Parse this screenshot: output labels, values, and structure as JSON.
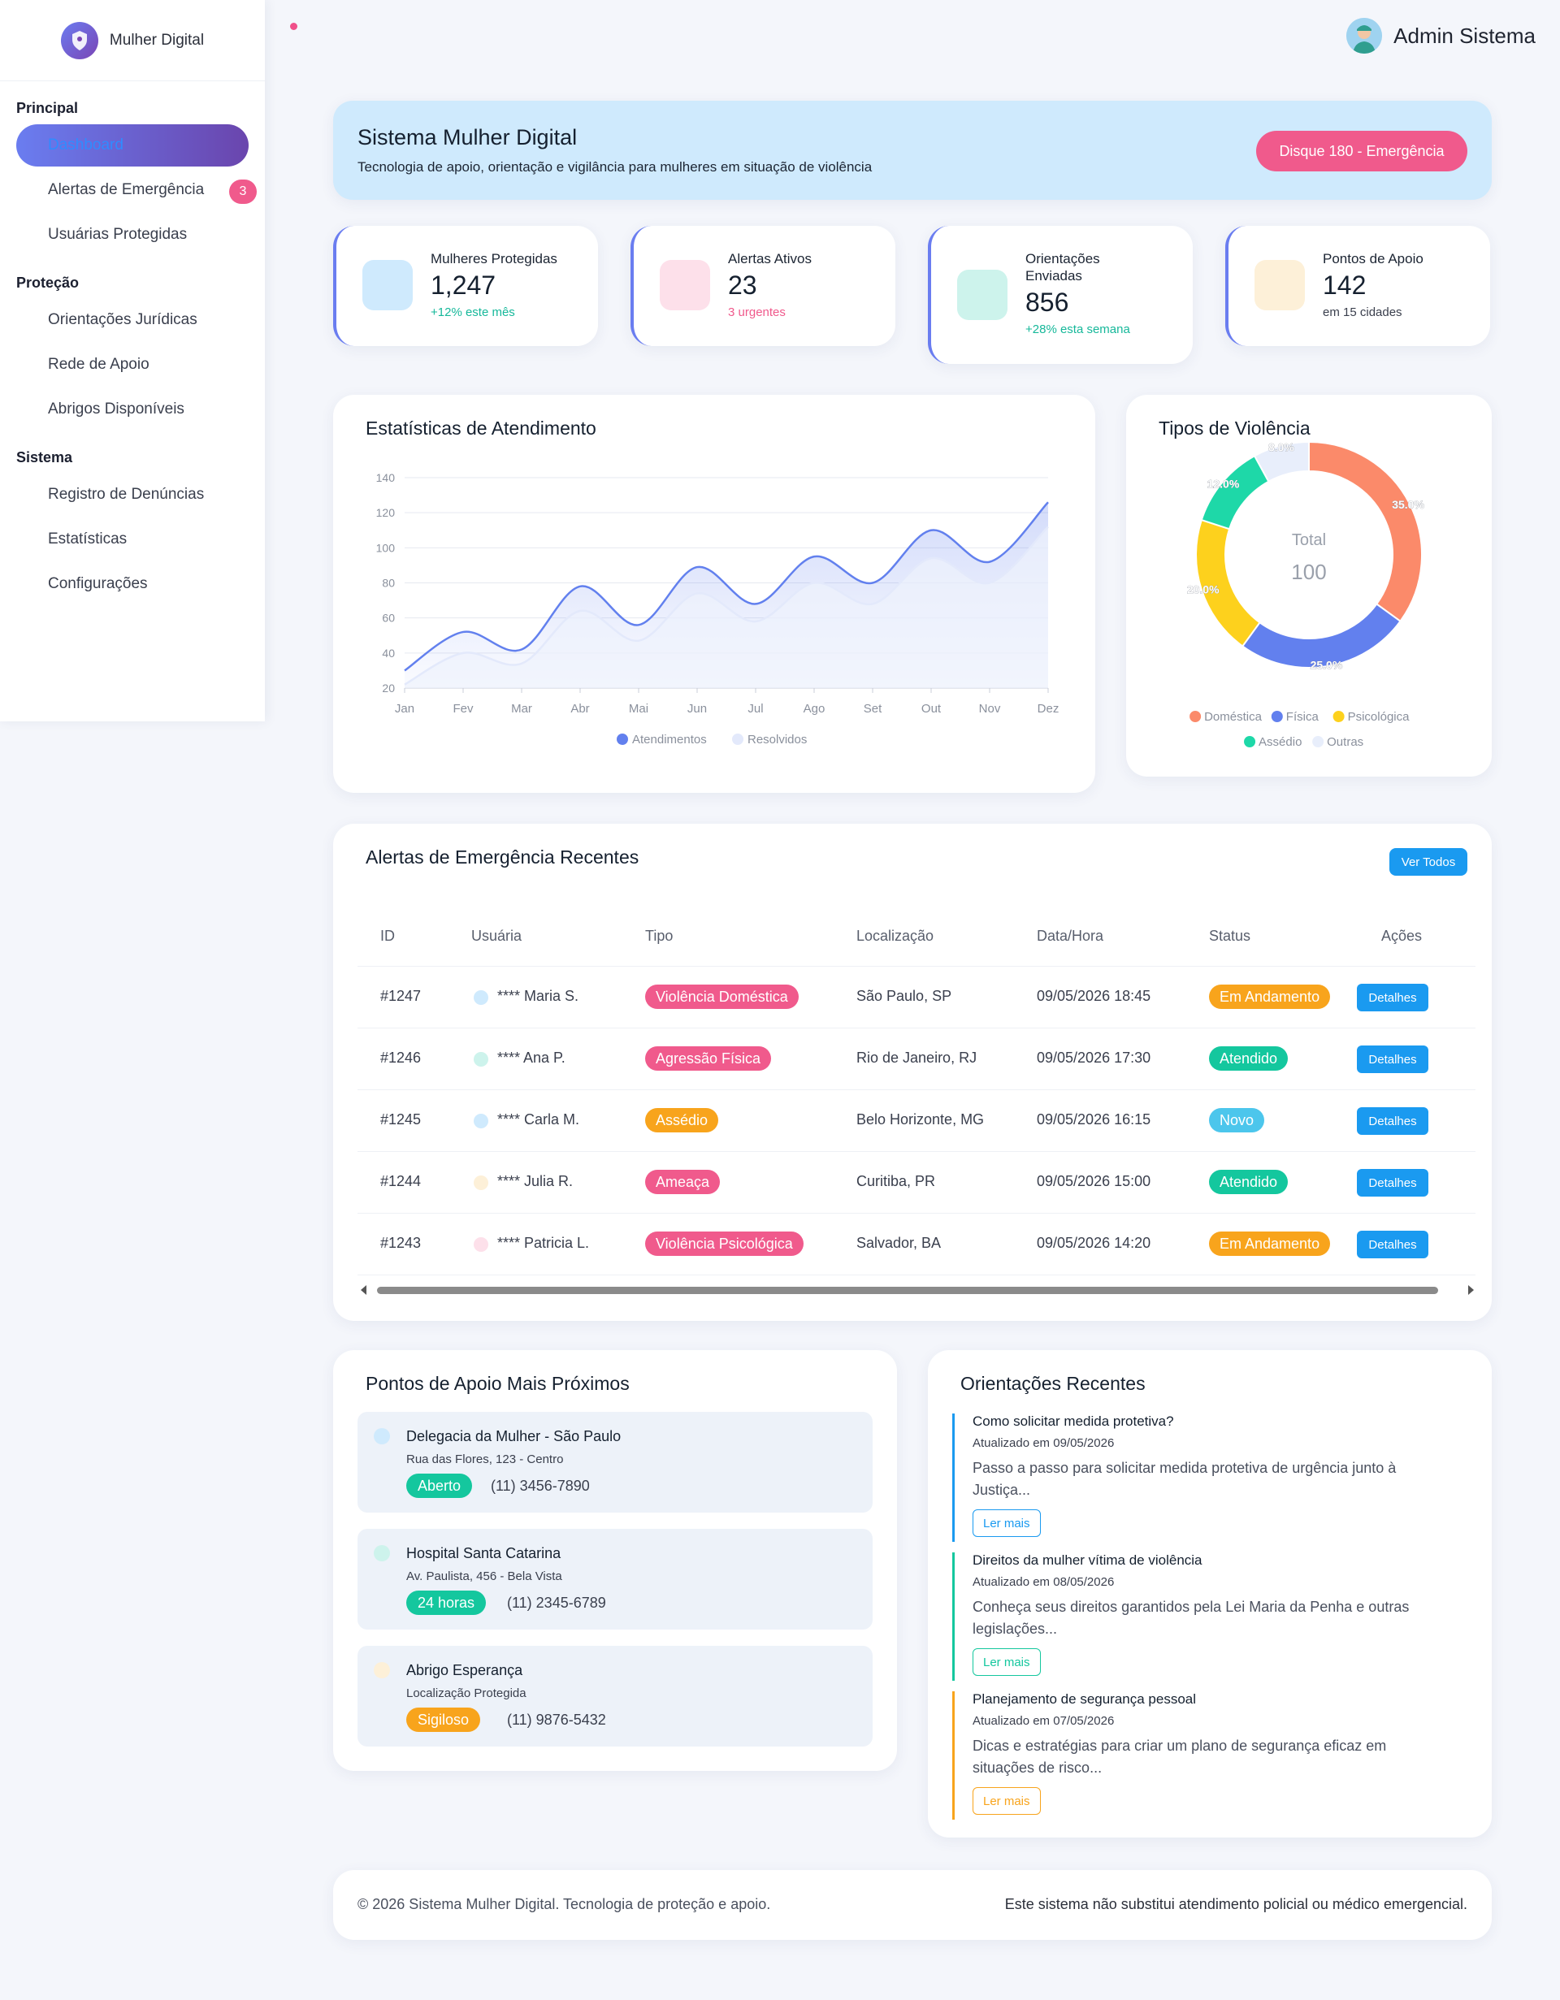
{
  "brand": {
    "name": "Mulher Digital"
  },
  "sidebar": {
    "sections": [
      {
        "title": "Principal",
        "items": [
          {
            "label": "Dashboard"
          },
          {
            "label": "Alertas de Emergência",
            "badge": "3"
          },
          {
            "label": "Usuárias Protegidas"
          }
        ]
      },
      {
        "title": "Proteção",
        "items": [
          {
            "label": "Orientações Jurídicas"
          },
          {
            "label": "Rede de Apoio"
          },
          {
            "label": "Abrigos Disponíveis"
          }
        ]
      },
      {
        "title": "Sistema",
        "items": [
          {
            "label": "Registro de Denúncias"
          },
          {
            "label": "Estatísticas"
          },
          {
            "label": "Configurações"
          }
        ]
      }
    ]
  },
  "header": {
    "user_name": "Admin Sistema"
  },
  "hero": {
    "title": "Sistema Mulher Digital",
    "subtitle": "Tecnologia de apoio, orientação e vigilância para mulheres em situação de violência",
    "emergency_button": "Disque 180 - Emergência"
  },
  "stats": [
    {
      "label": "Mulheres Protegidas",
      "value": "1,247",
      "note": "+12% este mês",
      "note_color": "#16b89a",
      "icon_color": "#cfeafd"
    },
    {
      "label": "Alertas Ativos",
      "value": "23",
      "note": "3 urgentes",
      "note_color": "#f05a8c",
      "icon_color": "#fde0ea"
    },
    {
      "label": "Orientações Enviadas",
      "value": "856",
      "note": "+28% esta semana",
      "note_color": "#16b89a",
      "icon_color": "#cdf3ec"
    },
    {
      "label": "Pontos de Apoio",
      "value": "142",
      "note": "em 15 cidades",
      "note_color": "#3a3f4d",
      "icon_color": "#fdf0d8"
    }
  ],
  "chart_data": [
    {
      "type": "area",
      "title": "Estatísticas de Atendimento",
      "categories": [
        "Jan",
        "Fev",
        "Mar",
        "Abr",
        "Mai",
        "Jun",
        "Jul",
        "Ago",
        "Set",
        "Out",
        "Nov",
        "Dez"
      ],
      "ylim": [
        20,
        140
      ],
      "yticks": [
        20,
        40,
        60,
        80,
        100,
        120,
        140
      ],
      "grid": true,
      "legend": "bottom",
      "series": [
        {
          "name": "Atendimentos",
          "values": [
            30,
            52,
            42,
            78,
            56,
            89,
            68,
            95,
            80,
            110,
            92,
            126
          ],
          "color": "#6280ee"
        },
        {
          "name": "Resolvidos",
          "values": [
            22,
            40,
            34,
            64,
            47,
            74,
            58,
            80,
            68,
            94,
            80,
            112
          ],
          "color": "#e3e9fb"
        }
      ]
    },
    {
      "type": "pie",
      "title": "Tipos de Violência",
      "center_label": "Total",
      "center_value": "100",
      "legend": "bottom",
      "slices": [
        {
          "name": "Doméstica",
          "value": 35.0,
          "label": "35.0%",
          "color": "#fb8a6a"
        },
        {
          "name": "Física",
          "value": 25.0,
          "label": "25.0%",
          "color": "#6280ee"
        },
        {
          "name": "Psicológica",
          "value": 20.0,
          "label": "20.0%",
          "color": "#fdd11d"
        },
        {
          "name": "Assédio",
          "value": 12.0,
          "label": "12.0%",
          "color": "#1ed8a8"
        },
        {
          "name": "Outras",
          "value": 8.0,
          "label": "8.0%",
          "color": "#e8eefb"
        }
      ]
    }
  ],
  "alerts": {
    "title": "Alertas de Emergência Recentes",
    "view_all": "Ver Todos",
    "columns": [
      "ID",
      "Usuária",
      "Tipo",
      "Localização",
      "Data/Hora",
      "Status",
      "Ações"
    ],
    "rows": [
      {
        "id": "#1247",
        "user": "**** Maria S.",
        "dot": "#cfeafd",
        "type": "Violência Doméstica",
        "type_color": "#f05a8c",
        "location": "São Paulo, SP",
        "datetime": "09/05/2026 18:45",
        "status": "Em Andamento",
        "status_color": "#f8a41c",
        "action": "Detalhes"
      },
      {
        "id": "#1246",
        "user": "**** Ana P.",
        "dot": "#cdf3ec",
        "type": "Agressão Física",
        "type_color": "#f05a8c",
        "location": "Rio de Janeiro, RJ",
        "datetime": "09/05/2026 17:30",
        "status": "Atendido",
        "status_color": "#14c79e",
        "action": "Detalhes"
      },
      {
        "id": "#1245",
        "user": "**** Carla M.",
        "dot": "#cfeafd",
        "type": "Assédio",
        "type_color": "#f8a41c",
        "location": "Belo Horizonte, MG",
        "datetime": "09/05/2026 16:15",
        "status": "Novo",
        "status_color": "#4cc6ec",
        "action": "Detalhes"
      },
      {
        "id": "#1244",
        "user": "**** Julia R.",
        "dot": "#fdf0d8",
        "type": "Ameaça",
        "type_color": "#f05a8c",
        "location": "Curitiba, PR",
        "datetime": "09/05/2026 15:00",
        "status": "Atendido",
        "status_color": "#14c79e",
        "action": "Detalhes"
      },
      {
        "id": "#1243",
        "user": "**** Patricia L.",
        "dot": "#fde0ea",
        "type": "Violência Psicológica",
        "type_color": "#f05a8c",
        "location": "Salvador, BA",
        "datetime": "09/05/2026 14:20",
        "status": "Em Andamento",
        "status_color": "#f8a41c",
        "action": "Detalhes"
      }
    ]
  },
  "pontos": {
    "title": "Pontos de Apoio Mais Próximos",
    "items": [
      {
        "name": "Delegacia da Mulher - São Paulo",
        "address": "Rua das Flores, 123 - Centro",
        "tag": "Aberto",
        "tag_color": "#14c79e",
        "phone": "(11) 3456-7890",
        "dot": "#cfeafd"
      },
      {
        "name": "Hospital Santa Catarina",
        "address": "Av. Paulista, 456 - Bela Vista",
        "tag": "24 horas",
        "tag_color": "#14c79e",
        "phone": "(11) 2345-6789",
        "dot": "#cdf3ec"
      },
      {
        "name": "Abrigo Esperança",
        "address": "Localização Protegida",
        "tag": "Sigiloso",
        "tag_color": "#f8a41c",
        "phone": "(11) 9876-5432",
        "dot": "#fdf0d8"
      }
    ]
  },
  "orientacoes": {
    "title": "Orientações Recentes",
    "items": [
      {
        "title": "Como solicitar medida protetiva?",
        "date": "Atualizado em 09/05/2026",
        "desc": "Passo a passo para solicitar medida protetiva de urgência junto à Justiça...",
        "button": "Ler mais",
        "color": "#1a9af0"
      },
      {
        "title": "Direitos da mulher vítima de violência",
        "date": "Atualizado em 08/05/2026",
        "desc": "Conheça seus direitos garantidos pela Lei Maria da Penha e outras legislações...",
        "button": "Ler mais",
        "color": "#14c79e"
      },
      {
        "title": "Planejamento de segurança pessoal",
        "date": "Atualizado em 07/05/2026",
        "desc": "Dicas e estratégias para criar um plano de segurança eficaz em situações de risco...",
        "button": "Ler mais",
        "color": "#f8a41c"
      }
    ]
  },
  "footer": {
    "left": "© 2026 Sistema Mulher Digital. Tecnologia de proteção e apoio.",
    "right": "Este sistema não substitui atendimento policial ou médico emergencial."
  }
}
